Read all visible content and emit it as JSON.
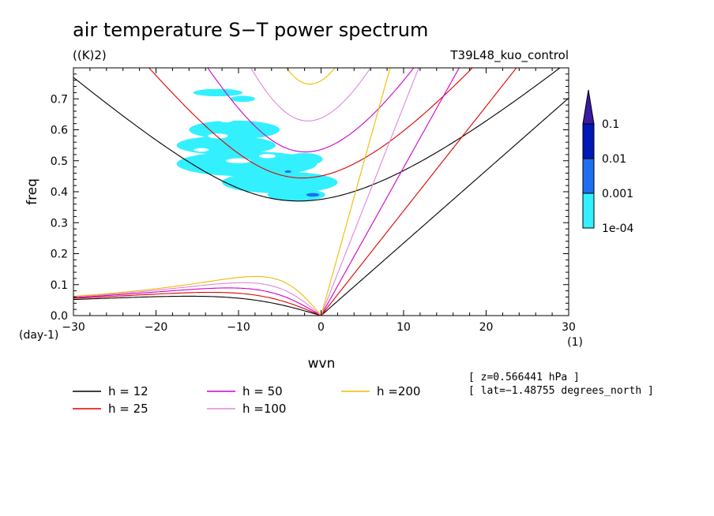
{
  "chart_data": {
    "type": "line",
    "title": "air temperature S−T power spectrum",
    "units": "((K)2)",
    "experiment": "T39L48_kuo_control",
    "xlabel": "wvn",
    "ylabel": "freq",
    "x_unit": "(1)",
    "y_unit": "(day-1)",
    "xlim": [
      -30,
      30
    ],
    "ylim": [
      0,
      0.8
    ],
    "x_ticks": [
      "−30",
      "−20",
      "−10",
      "0",
      "10",
      "20",
      "30"
    ],
    "y_ticks": [
      "0.0",
      "0.1",
      "0.2",
      "0.3",
      "0.4",
      "0.5",
      "0.6",
      "0.7"
    ],
    "series": [
      {
        "name": "h = 12",
        "h": 12,
        "color": "#000000"
      },
      {
        "name": "h = 25",
        "h": 25,
        "color": "#dd0000"
      },
      {
        "name": "h = 50",
        "h": 50,
        "color": "#cc00cc"
      },
      {
        "name": "h =100",
        "h": 100,
        "color": "#dd88dd"
      },
      {
        "name": "h =200",
        "h": 200,
        "color": "#eebb00"
      }
    ],
    "colorbar": {
      "labels": [
        "0.1",
        "0.01",
        "0.001",
        "1e-04"
      ],
      "colors": [
        "#3a1aa0",
        "#0018b8",
        "#1e6ef0",
        "#33f0ff"
      ]
    },
    "contour_blobs": [
      {
        "x": -12.5,
        "y": 0.72,
        "rx": 3.0,
        "ry": 0.012,
        "level": "1e-04"
      },
      {
        "x": -9.5,
        "y": 0.7,
        "rx": 1.5,
        "ry": 0.01,
        "level": "1e-04"
      },
      {
        "x": -10.5,
        "y": 0.6,
        "rx": 5.5,
        "ry": 0.03,
        "level": "1e-04"
      },
      {
        "x": -11.5,
        "y": 0.55,
        "rx": 6.0,
        "ry": 0.03,
        "level": "1e-04"
      },
      {
        "x": -9.0,
        "y": 0.49,
        "rx": 8.5,
        "ry": 0.04,
        "level": "1e-04"
      },
      {
        "x": -5.0,
        "y": 0.43,
        "rx": 7.0,
        "ry": 0.035,
        "level": "1e-04"
      },
      {
        "x": -3.0,
        "y": 0.39,
        "rx": 3.5,
        "ry": 0.02,
        "level": "1e-04"
      },
      {
        "x": -2.0,
        "y": 0.505,
        "rx": 2.2,
        "ry": 0.02,
        "level": "1e-04"
      },
      {
        "x": -1.0,
        "y": 0.39,
        "rx": 0.8,
        "ry": 0.006,
        "level": "0.001"
      },
      {
        "x": -4.0,
        "y": 0.465,
        "rx": 0.4,
        "ry": 0.004,
        "level": "0.001"
      }
    ],
    "contour_holes": [
      {
        "x": -12.5,
        "y": 0.58,
        "rx": 1.2,
        "ry": 0.008
      },
      {
        "x": -14.5,
        "y": 0.535,
        "rx": 0.9,
        "ry": 0.006
      },
      {
        "x": -10.0,
        "y": 0.5,
        "rx": 1.5,
        "ry": 0.008
      },
      {
        "x": -6.5,
        "y": 0.515,
        "rx": 1.0,
        "ry": 0.007
      },
      {
        "x": -11.5,
        "y": 0.63,
        "rx": 0.8,
        "ry": 0.006
      }
    ]
  },
  "info": {
    "z_line": "[ z=0.566441 hPa ]",
    "lat_line": "[ lat=−1.48755 degrees_north ]"
  }
}
